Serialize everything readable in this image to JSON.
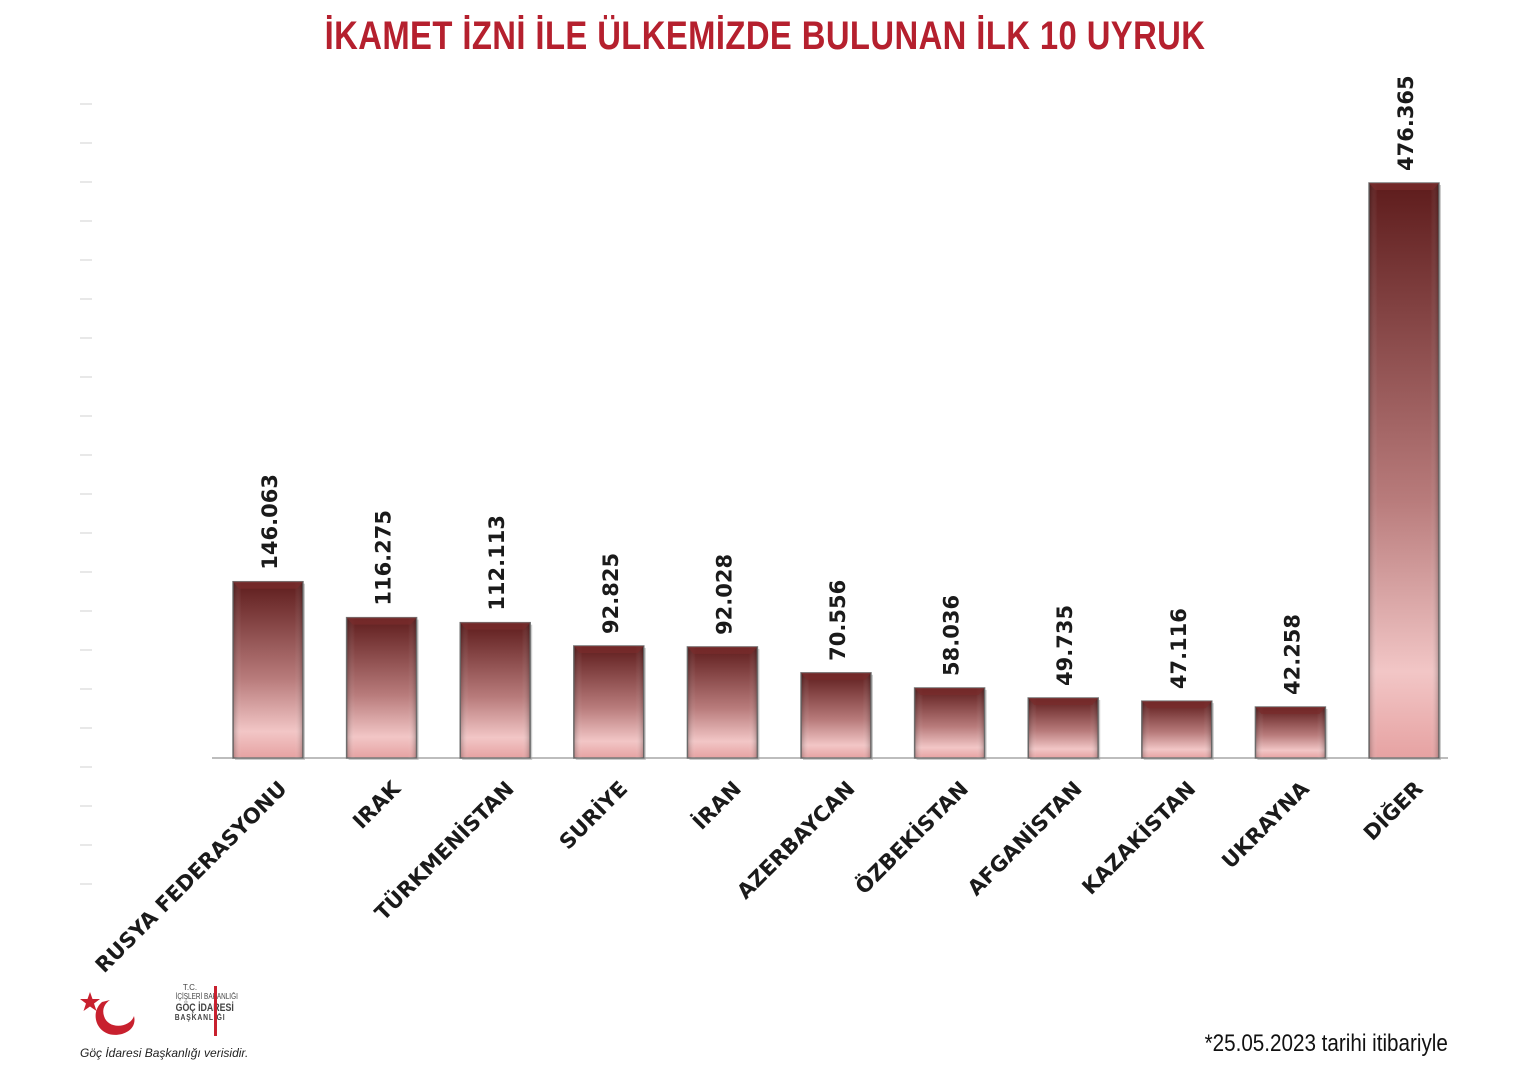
{
  "chart_data": {
    "type": "bar",
    "title": "İKAMET İZNİ İLE ÜLKEMİZDE BULUNAN İLK 10 UYRUK",
    "categories": [
      "RUSYA FEDERASYONU",
      "IRAK",
      "TÜRKMENİSTAN",
      "SURİYE",
      "İRAN",
      "AZERBAYCAN",
      "ÖZBEKİSTAN",
      "AFGANİSTAN",
      "KAZAKİSTAN",
      "UKRAYNA",
      "DİĞER"
    ],
    "values": [
      146063,
      116275,
      112113,
      92825,
      92028,
      70556,
      58036,
      49735,
      47116,
      42258,
      476365
    ],
    "value_labels": [
      "146.063",
      "116.275",
      "112.113",
      "92.825",
      "92.028",
      "70.556",
      "58.036",
      "49.735",
      "47.116",
      "42.258",
      "476.365"
    ],
    "ylim": [
      0,
      476365
    ],
    "grid": false,
    "legend": "none",
    "bar_color_top": "#5e1c1c",
    "bar_color_bottom": "#f2c4c4",
    "title_color": "#b5202e"
  },
  "logo": {
    "tc": "T.C.",
    "ministry": "İÇİŞLERİ BAKANLIĞI",
    "agency": "GÖÇ İDARESİ",
    "dept": "BAŞKANLIĞI"
  },
  "footer": {
    "source": "Göç İdaresi Başkanlığı verisidir.",
    "date_note": "*25.05.2023 tarihi itibariyle"
  }
}
